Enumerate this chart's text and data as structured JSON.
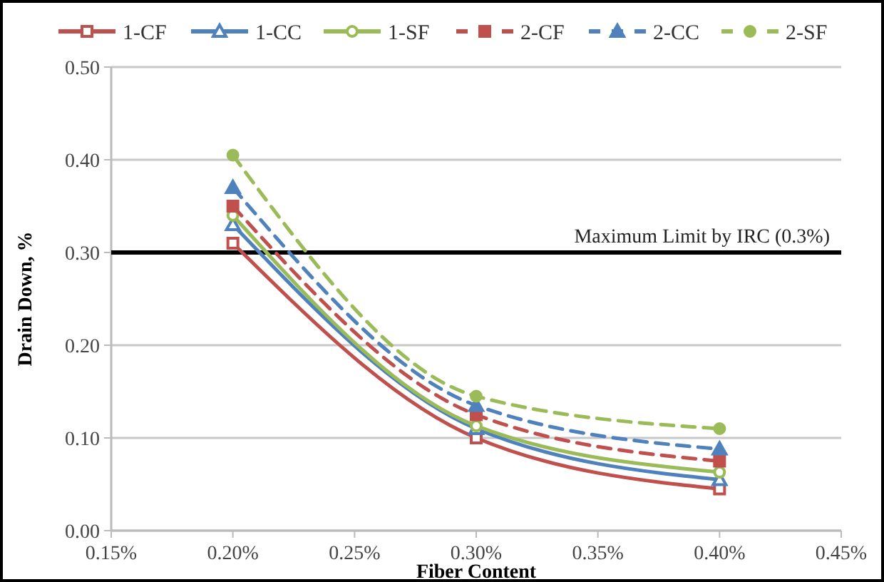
{
  "chart_data": {
    "type": "line",
    "xlabel": "Fiber Content",
    "ylabel": "Drain Down, %",
    "x": [
      0.2,
      0.3,
      0.4
    ],
    "xlim": [
      0.15,
      0.45
    ],
    "xticks": [
      {
        "value": 0.15,
        "label": "0.15%"
      },
      {
        "value": 0.2,
        "label": "0.20%"
      },
      {
        "value": 0.25,
        "label": "0.25%"
      },
      {
        "value": 0.3,
        "label": "0.30%"
      },
      {
        "value": 0.35,
        "label": "0.35%"
      },
      {
        "value": 0.4,
        "label": "0.40%"
      },
      {
        "value": 0.45,
        "label": "0.45%"
      }
    ],
    "ylim": [
      0,
      0.5
    ],
    "yticks": [
      {
        "value": 0,
        "label": "0.00"
      },
      {
        "value": 0.1,
        "label": "0.10"
      },
      {
        "value": 0.2,
        "label": "0.20"
      },
      {
        "value": 0.3,
        "label": "0.30"
      },
      {
        "value": 0.4,
        "label": "0.40"
      },
      {
        "value": 0.5,
        "label": "0.50"
      }
    ],
    "grid": "y",
    "legend": "top",
    "series": [
      {
        "name": "1-CF",
        "color": "#c0504d",
        "values": [
          0.31,
          0.1,
          0.045
        ],
        "marker": "square",
        "line_style": "solid"
      },
      {
        "name": "1-CC",
        "color": "#4f81bd",
        "values": [
          0.33,
          0.11,
          0.055
        ],
        "marker": "triangle",
        "line_style": "solid"
      },
      {
        "name": "1-SF",
        "color": "#9bbb59",
        "values": [
          0.34,
          0.113,
          0.063
        ],
        "marker": "circle",
        "line_style": "solid"
      },
      {
        "name": "2-CF",
        "color": "#c0504d",
        "values": [
          0.35,
          0.125,
          0.075
        ],
        "marker": "square",
        "line_style": "dashed"
      },
      {
        "name": "2-CC",
        "color": "#4f81bd",
        "values": [
          0.37,
          0.135,
          0.088
        ],
        "marker": "triangle",
        "line_style": "dashed"
      },
      {
        "name": "2-SF",
        "color": "#9bbb59",
        "values": [
          0.405,
          0.145,
          0.11
        ],
        "marker": "circle",
        "line_style": "dashed"
      }
    ],
    "ref_lines": [
      {
        "axis": "y",
        "value": 0.3,
        "label": "Maximum Limit by IRC (0.3%)",
        "color": "#000000"
      }
    ]
  }
}
